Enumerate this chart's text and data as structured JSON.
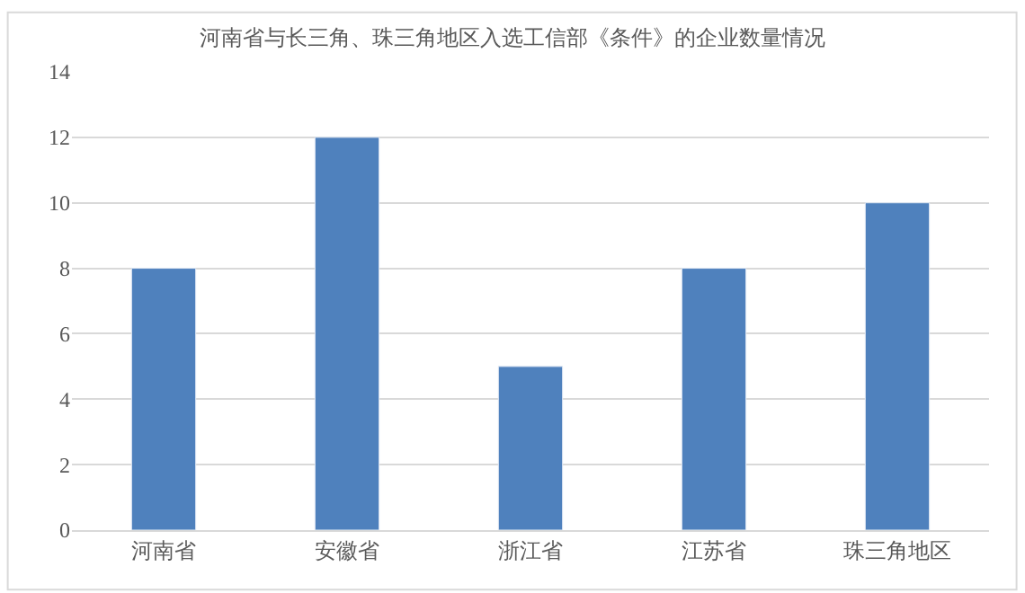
{
  "chart_data": {
    "type": "bar",
    "title": "河南省与长三角、珠三角地区入选工信部《条件》的企业数量情况",
    "categories": [
      "河南省",
      "安徽省",
      "浙江省",
      "江苏省",
      "珠三角地区"
    ],
    "values": [
      8,
      12,
      5,
      8,
      10
    ],
    "color": "#4f81bd",
    "ylim": [
      0,
      14
    ],
    "yticks": [
      0,
      2,
      4,
      6,
      8,
      10,
      12,
      14
    ],
    "grid": "y"
  }
}
